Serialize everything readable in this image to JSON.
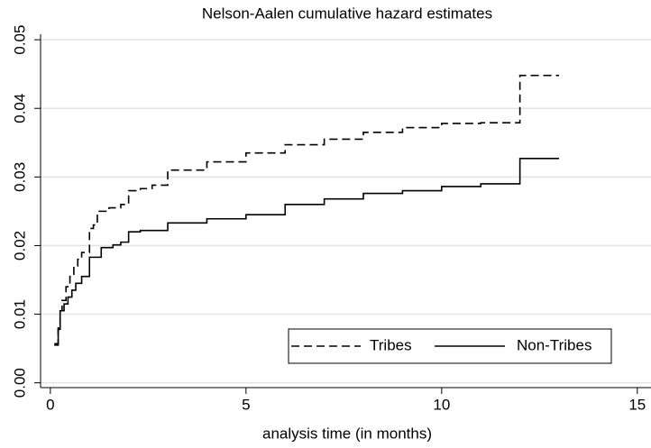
{
  "chart_data": {
    "type": "step",
    "title": "Nelson-Aalen cumulative hazard estimates",
    "x_label": "analysis time (in months)",
    "xlim": [
      -0.25,
      15.35
    ],
    "xticks": [
      0,
      5,
      10,
      15
    ],
    "ylim": [
      -0.0007,
      0.0508
    ],
    "yticks": [
      {
        "value": 0,
        "label": "0.00"
      },
      0.01,
      0.02,
      0.03,
      0.04,
      0.05
    ],
    "grid": true,
    "legend_position": "bottom-right",
    "series": [
      {
        "name": "Tribes",
        "color": "#000000",
        "linestyle": "dashed",
        "x": [
          0.1,
          0.2,
          0.25,
          0.3,
          0.4,
          0.5,
          0.6,
          0.7,
          0.8,
          1.0,
          1.1,
          1.2,
          1.5,
          1.8,
          2.0,
          2.3,
          2.6,
          3.0,
          4.0,
          5.0,
          6.0,
          7.0,
          8.0,
          9.0,
          10.0,
          11.0,
          12.0,
          13.0
        ],
        "values": [
          0.0057,
          0.008,
          0.0105,
          0.012,
          0.014,
          0.0155,
          0.017,
          0.018,
          0.019,
          0.0225,
          0.023,
          0.025,
          0.0255,
          0.026,
          0.028,
          0.0283,
          0.0288,
          0.031,
          0.0322,
          0.0335,
          0.0347,
          0.0355,
          0.0365,
          0.0372,
          0.0378,
          0.0379,
          0.0448,
          0.0448
        ]
      },
      {
        "name": "Non-Tribes",
        "color": "#000000",
        "linestyle": "solid",
        "x": [
          0.1,
          0.2,
          0.25,
          0.35,
          0.45,
          0.55,
          0.65,
          0.8,
          1.0,
          1.3,
          1.6,
          1.8,
          2.0,
          2.3,
          3.0,
          4.0,
          5.0,
          6.0,
          7.0,
          8.0,
          9.0,
          10.0,
          11.0,
          12.0,
          13.0
        ],
        "values": [
          0.0055,
          0.0078,
          0.0105,
          0.0115,
          0.0125,
          0.0135,
          0.0145,
          0.0155,
          0.0183,
          0.0197,
          0.0201,
          0.0205,
          0.022,
          0.0222,
          0.0233,
          0.0239,
          0.0245,
          0.026,
          0.0268,
          0.0276,
          0.028,
          0.0286,
          0.029,
          0.0327,
          0.0327
        ]
      }
    ]
  }
}
